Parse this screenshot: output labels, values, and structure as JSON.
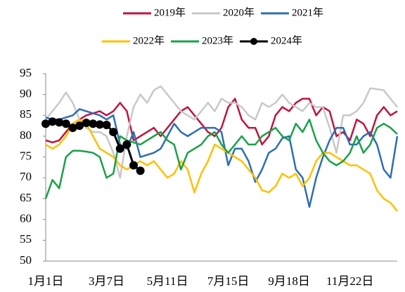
{
  "chart_data": {
    "type": "line",
    "categories": [
      "1月1日",
      null,
      null,
      null,
      null,
      null,
      null,
      null,
      null,
      "3月7日",
      null,
      null,
      null,
      null,
      null,
      null,
      null,
      null,
      "5月11日",
      null,
      null,
      null,
      null,
      null,
      null,
      null,
      null,
      "7月15日",
      null,
      null,
      null,
      null,
      null,
      null,
      null,
      null,
      "9月18日",
      null,
      null,
      null,
      null,
      null,
      null,
      null,
      null,
      "11月22日",
      null,
      null,
      null,
      null,
      null,
      null,
      null
    ],
    "ylim": [
      50,
      95
    ],
    "yticks": [
      50,
      55,
      60,
      65,
      70,
      75,
      80,
      85,
      90,
      95
    ],
    "legend": "top",
    "series": [
      {
        "name": "2019年",
        "color": "#c0143c",
        "values": [
          79,
          78.5,
          79,
          81,
          83,
          84,
          85,
          85.5,
          86,
          85,
          86,
          88,
          86,
          79,
          80,
          81,
          82,
          80,
          82,
          84,
          86,
          87,
          85,
          83,
          81,
          80,
          82,
          87,
          89,
          84,
          82,
          82,
          78,
          80,
          85,
          87,
          86,
          88,
          89,
          89,
          85,
          87,
          86,
          80,
          81,
          79,
          84,
          83,
          80,
          85,
          87,
          85,
          86
        ]
      },
      {
        "name": "2020年",
        "color": "#c8c8c8",
        "values": [
          84,
          86,
          88,
          90.5,
          88,
          84,
          82,
          81,
          81,
          80,
          76,
          70,
          80,
          87,
          90,
          88,
          91,
          92,
          90,
          88,
          86,
          85,
          84,
          86,
          88,
          86,
          89,
          88,
          88,
          87,
          85,
          84,
          88,
          87,
          88,
          90,
          88,
          87,
          86,
          88,
          87,
          87,
          82,
          76,
          85,
          85,
          86,
          88,
          91.5,
          91.3,
          91,
          89,
          87
        ]
      },
      {
        "name": "2021年",
        "color": "#2e6db4",
        "values": [
          84.5,
          84,
          84,
          84.5,
          85,
          86.5,
          86,
          85.5,
          85,
          84,
          85,
          78,
          77,
          81,
          75,
          75.5,
          76,
          77,
          80,
          83,
          81,
          80,
          81,
          82,
          82,
          82,
          81,
          73,
          77,
          77,
          74,
          69,
          72,
          76,
          77,
          79.5,
          80,
          72,
          70,
          63,
          70,
          75,
          79,
          82,
          82,
          78,
          78,
          80,
          81,
          78,
          72,
          70,
          80
        ]
      },
      {
        "name": "2022年",
        "color": "#ffc000",
        "values": [
          78,
          77,
          78,
          80,
          83,
          84,
          83,
          80,
          77,
          76,
          75,
          73,
          72,
          73,
          74,
          73,
          74,
          72,
          70,
          71,
          74,
          72,
          66.5,
          71,
          74,
          78,
          77,
          76,
          75,
          74,
          72,
          70,
          67,
          66.5,
          68,
          71,
          70,
          71,
          68,
          70,
          74,
          76,
          76,
          75,
          74,
          73,
          73,
          72,
          71,
          67,
          65,
          64,
          62
        ]
      },
      {
        "name": "2023年",
        "color": "#1aa04a",
        "values": [
          65,
          69.5,
          67.5,
          75,
          76.5,
          76.5,
          76.3,
          76,
          75,
          70,
          71,
          80,
          79,
          78.5,
          78,
          79,
          80,
          81,
          79,
          78,
          72,
          76,
          77,
          78,
          80,
          81,
          78,
          76,
          78,
          80,
          78,
          78,
          80,
          81,
          82,
          80,
          79,
          83,
          81,
          84,
          79,
          76,
          74,
          73,
          74,
          76,
          80,
          76,
          78,
          82,
          83,
          82,
          80.5
        ]
      },
      {
        "name": "2024年",
        "color": "#000000",
        "marker": true,
        "values": [
          83,
          83.5,
          83.3,
          83,
          82,
          82.5,
          83.2,
          83,
          82.8,
          82.7,
          81,
          77,
          78,
          73,
          71.7,
          null,
          null,
          null,
          null,
          null,
          null,
          null,
          null,
          null,
          null,
          null,
          null,
          null,
          null,
          null,
          null,
          null,
          null,
          null,
          null,
          null,
          null,
          null,
          null,
          null,
          null,
          null,
          null,
          null,
          null,
          null,
          null,
          null,
          null,
          null,
          null,
          null,
          null
        ]
      }
    ]
  }
}
